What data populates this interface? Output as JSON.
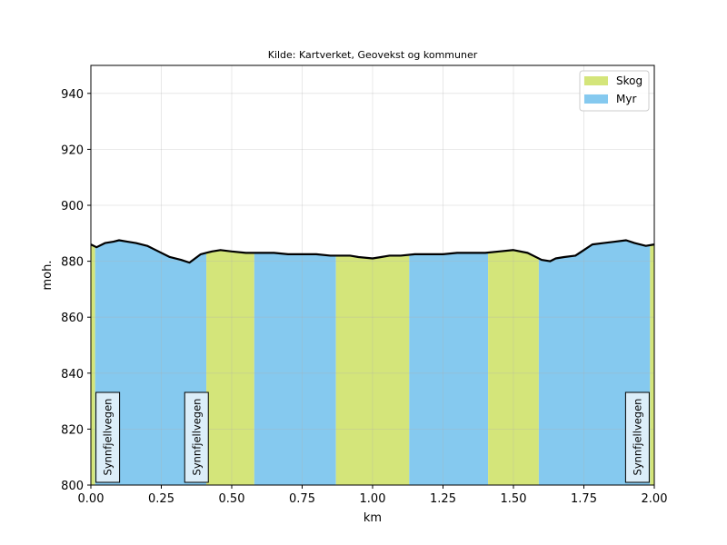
{
  "chart_data": {
    "type": "area",
    "title": "Kilde: Kartverket, Geovekst og kommuner",
    "xlabel": "km",
    "ylabel": "moh.",
    "xlim": [
      0,
      2.0
    ],
    "ylim": [
      800,
      950
    ],
    "x_ticks": [
      "0.00",
      "0.25",
      "0.50",
      "0.75",
      "1.00",
      "1.25",
      "1.50",
      "1.75",
      "2.00"
    ],
    "y_ticks": [
      "800",
      "820",
      "840",
      "860",
      "880",
      "900",
      "920",
      "940"
    ],
    "grid": true,
    "legend_position": "top-right",
    "legend": [
      {
        "label": "Skog",
        "color": "#d4e57a"
      },
      {
        "label": "Myr",
        "color": "#85c9ef"
      }
    ],
    "land_cover": [
      {
        "type": "Skog",
        "x0": 0.0,
        "x1": 0.015
      },
      {
        "type": "Myr",
        "x0": 0.015,
        "x1": 0.41
      },
      {
        "type": "Skog",
        "x0": 0.41,
        "x1": 0.58
      },
      {
        "type": "Myr",
        "x0": 0.58,
        "x1": 0.87
      },
      {
        "type": "Skog",
        "x0": 0.87,
        "x1": 1.13
      },
      {
        "type": "Myr",
        "x0": 1.13,
        "x1": 1.41
      },
      {
        "type": "Skog",
        "x0": 1.41,
        "x1": 1.59
      },
      {
        "type": "Myr",
        "x0": 1.59,
        "x1": 1.985
      },
      {
        "type": "Skog",
        "x0": 1.985,
        "x1": 2.0
      }
    ],
    "elevation": {
      "x": [
        0.0,
        0.02,
        0.05,
        0.08,
        0.1,
        0.13,
        0.16,
        0.2,
        0.24,
        0.28,
        0.32,
        0.35,
        0.37,
        0.39,
        0.41,
        0.43,
        0.46,
        0.5,
        0.55,
        0.6,
        0.65,
        0.7,
        0.75,
        0.8,
        0.85,
        0.88,
        0.92,
        0.95,
        1.0,
        1.03,
        1.06,
        1.1,
        1.15,
        1.2,
        1.25,
        1.3,
        1.35,
        1.4,
        1.45,
        1.5,
        1.55,
        1.6,
        1.63,
        1.65,
        1.68,
        1.72,
        1.75,
        1.78,
        1.82,
        1.86,
        1.9,
        1.93,
        1.97,
        2.0
      ],
      "y": [
        886,
        885,
        886.5,
        887,
        887.5,
        887,
        886.5,
        885.5,
        883.5,
        881.5,
        880.5,
        879.5,
        881,
        882.5,
        883,
        883.5,
        884,
        883.5,
        883,
        883,
        883,
        882.5,
        882.5,
        882.5,
        882,
        882,
        882,
        881.5,
        881,
        881.5,
        882,
        882,
        882.5,
        882.5,
        882.5,
        883,
        883,
        883,
        883.5,
        884,
        883,
        880.5,
        880,
        881,
        881.5,
        882,
        884,
        886,
        886.5,
        887,
        887.5,
        886.5,
        885.5,
        886
      ]
    },
    "annotations": [
      {
        "text": "Synnfjellvegen",
        "x": 0.06
      },
      {
        "text": "Synnfjellvegen",
        "x": 0.375
      },
      {
        "text": "Synnfjellvegen",
        "x": 1.94
      }
    ]
  }
}
